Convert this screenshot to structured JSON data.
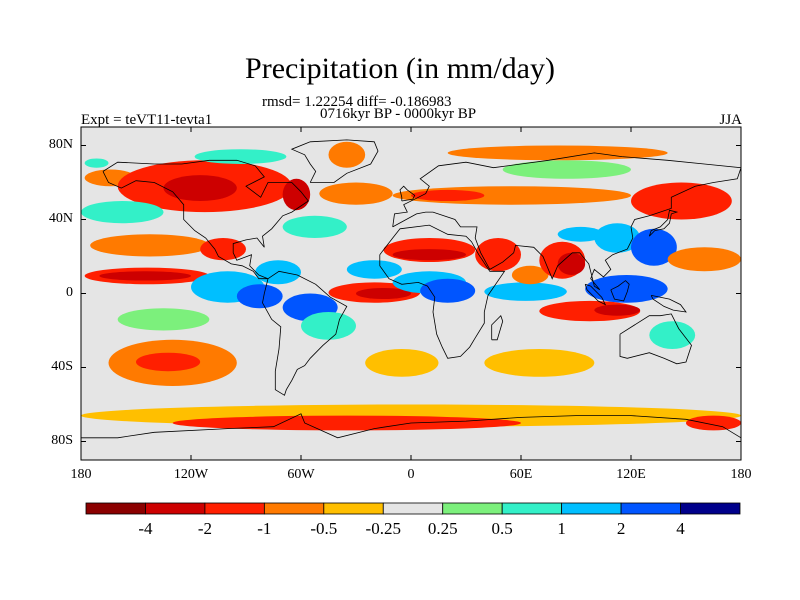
{
  "title": "Precipitation (in mm/day)",
  "stats_line": "rmsd= 1.22254 diff= -0.186983",
  "period": "0716kyr BP - 0000kyr BP",
  "experiment": "Expt = teVT11-tevta1",
  "season": "JJA",
  "chart_data": {
    "type": "heatmap",
    "variable": "Precipitation difference",
    "units": "mm/day",
    "projection": "cylindrical-equidistant",
    "lon_range": [
      -180,
      180
    ],
    "lat_range": [
      -90,
      90
    ],
    "x_ticks": [
      {
        "lon": -180,
        "label": "180"
      },
      {
        "lon": -120,
        "label": "120W"
      },
      {
        "lon": -60,
        "label": "60W"
      },
      {
        "lon": 0,
        "label": "0"
      },
      {
        "lon": 60,
        "label": "60E"
      },
      {
        "lon": 120,
        "label": "120E"
      },
      {
        "lon": 180,
        "label": "180"
      }
    ],
    "y_ticks": [
      {
        "lat": 80,
        "label": "80N"
      },
      {
        "lat": 40,
        "label": "40N"
      },
      {
        "lat": 0,
        "label": "0"
      },
      {
        "lat": -40,
        "label": "40S"
      },
      {
        "lat": -80,
        "label": "80S"
      }
    ],
    "colorbar": {
      "colors": [
        "#8b0000",
        "#cd0000",
        "#ff1f00",
        "#ff7a00",
        "#ffbf00",
        "#e5e5e5",
        "#7cf07c",
        "#33f0c8",
        "#00bfff",
        "#0055ff",
        "#00008b"
      ],
      "boundaries": [
        -6,
        -4,
        -2,
        -1,
        -0.5,
        -0.25,
        0.25,
        0.5,
        1,
        2,
        4,
        6
      ],
      "labels": [
        {
          "value": -4,
          "label": "-4"
        },
        {
          "value": -2,
          "label": "-2"
        },
        {
          "value": -1,
          "label": "-1"
        },
        {
          "value": -0.5,
          "label": "-0.5"
        },
        {
          "value": -0.25,
          "label": "-0.25"
        },
        {
          "value": 0.25,
          "label": "0.25"
        },
        {
          "value": 0.5,
          "label": "0.5"
        },
        {
          "value": 1,
          "label": "1"
        },
        {
          "value": 2,
          "label": "2"
        },
        {
          "value": 4,
          "label": "4"
        }
      ]
    },
    "field_regions": [
      {
        "name": "north-pacific-subarctic-dry",
        "lon": [
          -178,
          -150
        ],
        "lat": [
          58,
          67
        ],
        "value": -0.6
      },
      {
        "name": "alaska-wet",
        "lon": [
          -178,
          -165
        ],
        "lat": [
          68,
          73
        ],
        "value": 0.6
      },
      {
        "name": "north-america-dry",
        "lon": [
          -160,
          -65
        ],
        "lat": [
          44,
          72
        ],
        "value": -1.5
      },
      {
        "name": "north-america-core-dry",
        "lon": [
          -135,
          -95
        ],
        "lat": [
          50,
          64
        ],
        "value": -2.5
      },
      {
        "name": "canada-arctic-wet",
        "lon": [
          -118,
          -68
        ],
        "lat": [
          70,
          78
        ],
        "value": 0.6
      },
      {
        "name": "hudson-dry",
        "lon": [
          -70,
          -55
        ],
        "lat": [
          45,
          62
        ],
        "value": -2.2
      },
      {
        "name": "greenland-dry",
        "lon": [
          -45,
          -25
        ],
        "lat": [
          68,
          82
        ],
        "value": -0.6
      },
      {
        "name": "north-atlantic-wet",
        "lon": [
          -70,
          -35
        ],
        "lat": [
          30,
          42
        ],
        "value": 0.8
      },
      {
        "name": "north-atlantic-dry",
        "lon": [
          -50,
          -10
        ],
        "lat": [
          48,
          60
        ],
        "value": -0.7
      },
      {
        "name": "eurasia-belt-dry",
        "lon": [
          -10,
          120
        ],
        "lat": [
          48,
          58
        ],
        "value": -0.7
      },
      {
        "name": "europe-dry",
        "lon": [
          0,
          40
        ],
        "lat": [
          50,
          56
        ],
        "value": -1.2
      },
      {
        "name": "siberia-wet",
        "lon": [
          50,
          120
        ],
        "lat": [
          62,
          72
        ],
        "value": 0.4
      },
      {
        "name": "arctic-coast-dry",
        "lon": [
          20,
          140
        ],
        "lat": [
          72,
          80
        ],
        "value": -0.6
      },
      {
        "name": "east-asia-dry",
        "lon": [
          120,
          175
        ],
        "lat": [
          40,
          60
        ],
        "value": -1.2
      },
      {
        "name": "north-pacific-wet",
        "lon": [
          -180,
          -135
        ],
        "lat": [
          38,
          50
        ],
        "value": 0.6
      },
      {
        "name": "north-pacific-subtropical-dry",
        "lon": [
          -175,
          -110
        ],
        "lat": [
          20,
          32
        ],
        "value": -0.6
      },
      {
        "name": "central-pacific-itcz-dry",
        "lon": [
          -178,
          -110
        ],
        "lat": [
          5,
          14
        ],
        "value": -1.3
      },
      {
        "name": "pacific-itcz-core-dry",
        "lon": [
          -170,
          -120
        ],
        "lat": [
          7,
          12
        ],
        "value": -2.3
      },
      {
        "name": "mexico-dry",
        "lon": [
          -115,
          -90
        ],
        "lat": [
          18,
          30
        ],
        "value": -1.2
      },
      {
        "name": "eastern-pacific-wet",
        "lon": [
          -120,
          -80
        ],
        "lat": [
          -5,
          12
        ],
        "value": 1.5
      },
      {
        "name": "eastern-pacific-core-wet",
        "lon": [
          -95,
          -70
        ],
        "lat": [
          -8,
          5
        ],
        "value": 3.0
      },
      {
        "name": "caribbean-wet",
        "lon": [
          -85,
          -60
        ],
        "lat": [
          5,
          18
        ],
        "value": 1.2
      },
      {
        "name": "amazon-wet",
        "lon": [
          -70,
          -40
        ],
        "lat": [
          -15,
          0
        ],
        "value": 2.0
      },
      {
        "name": "south-america-wet",
        "lon": [
          -60,
          -30
        ],
        "lat": [
          -25,
          -10
        ],
        "value": 0.7
      },
      {
        "name": "equatorial-atlantic-dry",
        "lon": [
          -45,
          5
        ],
        "lat": [
          -5,
          6
        ],
        "value": -1.8
      },
      {
        "name": "atlantic-itcz-dry",
        "lon": [
          -30,
          0
        ],
        "lat": [
          -3,
          3
        ],
        "value": -3.0
      },
      {
        "name": "tropical-atlantic-wet",
        "lon": [
          -35,
          -5
        ],
        "lat": [
          8,
          18
        ],
        "value": 1.3
      },
      {
        "name": "sahara-dry",
        "lon": [
          -15,
          35
        ],
        "lat": [
          17,
          30
        ],
        "value": -1.5
      },
      {
        "name": "sahel-dry",
        "lon": [
          -10,
          30
        ],
        "lat": [
          18,
          24
        ],
        "value": -2.5
      },
      {
        "name": "west-africa-wet",
        "lon": [
          -10,
          30
        ],
        "lat": [
          0,
          12
        ],
        "value": 1.2
      },
      {
        "name": "central-africa-wet",
        "lon": [
          5,
          35
        ],
        "lat": [
          -5,
          8
        ],
        "value": 2.0
      },
      {
        "name": "arabia-dry",
        "lon": [
          35,
          60
        ],
        "lat": [
          12,
          30
        ],
        "value": -1.3
      },
      {
        "name": "indian-ocean-wet",
        "lon": [
          40,
          85
        ],
        "lat": [
          -4,
          6
        ],
        "value": 1.4
      },
      {
        "name": "arabian-sea-dry",
        "lon": [
          55,
          75
        ],
        "lat": [
          5,
          15
        ],
        "value": -1.0
      },
      {
        "name": "india-dry",
        "lon": [
          70,
          95
        ],
        "lat": [
          8,
          28
        ],
        "value": -1.8
      },
      {
        "name": "bay-of-bengal-dry",
        "lon": [
          80,
          95
        ],
        "lat": [
          10,
          22
        ],
        "value": -3.5
      },
      {
        "name": "tibet-wet",
        "lon": [
          80,
          105
        ],
        "lat": [
          28,
          36
        ],
        "value": 1.2
      },
      {
        "name": "china-wet",
        "lon": [
          100,
          125
        ],
        "lat": [
          22,
          38
        ],
        "value": 1.8
      },
      {
        "name": "west-pacific-wet",
        "lon": [
          120,
          145
        ],
        "lat": [
          15,
          35
        ],
        "value": 2.5
      },
      {
        "name": "west-pacific-dry",
        "lon": [
          140,
          180
        ],
        "lat": [
          12,
          25
        ],
        "value": -1.0
      },
      {
        "name": "maritime-continent-wet",
        "lon": [
          95,
          140
        ],
        "lat": [
          -5,
          10
        ],
        "value": 2.2
      },
      {
        "name": "indian-ocean-south-dry",
        "lon": [
          70,
          125
        ],
        "lat": [
          -15,
          -4
        ],
        "value": -1.8
      },
      {
        "name": "java-sea-dry",
        "lon": [
          100,
          125
        ],
        "lat": [
          -12,
          -6
        ],
        "value": -3.5
      },
      {
        "name": "australia-wet",
        "lon": [
          130,
          155
        ],
        "lat": [
          -30,
          -15
        ],
        "value": 0.8
      },
      {
        "name": "south-pacific-dry",
        "lon": [
          -165,
          -95
        ],
        "lat": [
          -50,
          -25
        ],
        "value": -1.0
      },
      {
        "name": "south-pacific-core-dry",
        "lon": [
          -150,
          -115
        ],
        "lat": [
          -42,
          -32
        ],
        "value": -1.8
      },
      {
        "name": "south-pacific-wet",
        "lon": [
          -160,
          -110
        ],
        "lat": [
          -20,
          -8
        ],
        "value": 0.4
      },
      {
        "name": "south-atlantic-dry",
        "lon": [
          -25,
          15
        ],
        "lat": [
          -45,
          -30
        ],
        "value": -0.4
      },
      {
        "name": "south-indian-dry",
        "lon": [
          40,
          100
        ],
        "lat": [
          -45,
          -30
        ],
        "value": -0.5
      },
      {
        "name": "southern-ocean-dry",
        "lon": [
          -180,
          180
        ],
        "lat": [
          -72,
          -60
        ],
        "value": -0.5
      },
      {
        "name": "antarctic-coast-dry",
        "lon": [
          -130,
          60
        ],
        "lat": [
          -74,
          -66
        ],
        "value": -1.1
      },
      {
        "name": "ross-sea-dry",
        "lon": [
          150,
          180
        ],
        "lat": [
          -74,
          -66
        ],
        "value": -1.1
      }
    ]
  }
}
